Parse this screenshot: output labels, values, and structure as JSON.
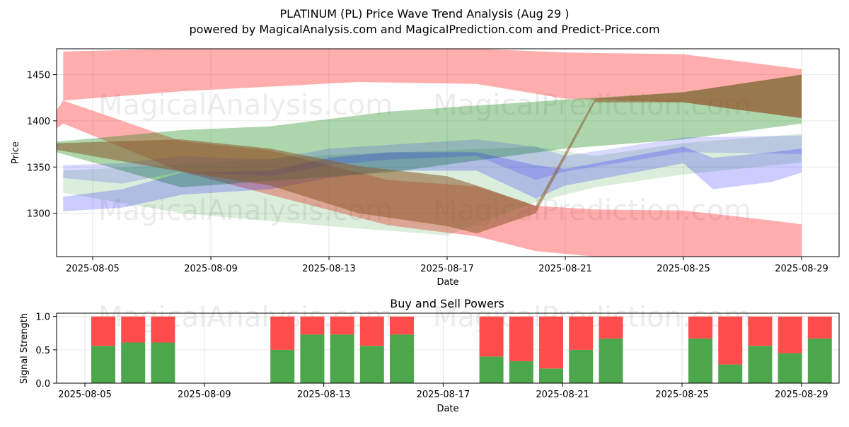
{
  "figure": {
    "title_line1": "PLATINUM (PL) Price Wave Trend Analysis (Aug 29 )",
    "title_line2": "powered by MagicalAnalysis.com and MagicalPrediction.com and Predict-Price.com",
    "watermarks": [
      "MagicalAnalysis.com",
      "MagicalPrediction.com"
    ]
  },
  "chart_data": [
    {
      "type": "area",
      "xlabel": "Date",
      "ylabel": "Price",
      "x_ticks": [
        "2025-08-05",
        "2025-08-09",
        "2025-08-13",
        "2025-08-17",
        "2025-08-21",
        "2025-08-25",
        "2025-08-29"
      ],
      "y_ticks": [
        1300,
        1350,
        1400,
        1450
      ],
      "ylim": [
        1253,
        1478
      ],
      "xlim": [
        "2025-08-03",
        "2025-08-30"
      ],
      "grid": true,
      "colors": {
        "red": "#ff0000",
        "green": "#008000",
        "blue": "#0000ff",
        "brown": "#8b5a2b"
      },
      "bands": [
        {
          "color": "red",
          "opacity": 0.32,
          "x": [
            "2025-08-04",
            "2025-08-08",
            "2025-08-14",
            "2025-08-18",
            "2025-08-21",
            "2025-08-25",
            "2025-08-29"
          ],
          "upper": [
            1475,
            1478,
            1478,
            1478,
            1474,
            1472,
            1456
          ],
          "lower": [
            1422,
            1432,
            1442,
            1440,
            1424,
            1420,
            1403
          ]
        },
        {
          "color": "red",
          "opacity": 0.32,
          "x": [
            "2025-08-03",
            "2025-08-04",
            "2025-08-08",
            "2025-08-11",
            "2025-08-15",
            "2025-08-18",
            "2025-08-20",
            "2025-08-22",
            "2025-08-25",
            "2025-08-28",
            "2025-08-29"
          ],
          "upper": [
            1375,
            1422,
            1378,
            1368,
            1336,
            1329,
            1308,
            1304,
            1303,
            1292,
            1288
          ],
          "lower": [
            1373,
            1397,
            1345,
            1320,
            1287,
            1275,
            1259,
            1253,
            1253,
            1253,
            1253
          ]
        },
        {
          "color": "green",
          "opacity": 0.32,
          "x": [
            "2025-08-03",
            "2025-08-08",
            "2025-08-11",
            "2025-08-15",
            "2025-08-21",
            "2025-08-25",
            "2025-08-29"
          ],
          "upper": [
            1375,
            1390,
            1394,
            1410,
            1423,
            1431,
            1450
          ],
          "lower": [
            1373,
            1328,
            1335,
            1344,
            1370,
            1380,
            1397
          ]
        },
        {
          "color": "green",
          "opacity": 0.14,
          "x": [
            "2025-08-04",
            "2025-08-08",
            "2025-08-13",
            "2025-08-17",
            "2025-08-20",
            "2025-08-22",
            "2025-08-25",
            "2025-08-29"
          ],
          "upper": [
            1346,
            1353,
            1363,
            1368,
            1372,
            1362,
            1376,
            1386
          ],
          "lower": [
            1322,
            1300,
            1286,
            1276,
            1312,
            1328,
            1342,
            1355
          ]
        },
        {
          "color": "blue",
          "opacity": 0.2,
          "x": [
            "2025-08-04",
            "2025-08-06",
            "2025-08-08",
            "2025-08-11",
            "2025-08-13",
            "2025-08-15",
            "2025-08-18",
            "2025-08-20",
            "2025-08-21",
            "2025-08-25",
            "2025-08-26",
            "2025-08-28",
            "2025-08-29"
          ],
          "upper": [
            1318,
            1326,
            1344,
            1346,
            1360,
            1366,
            1366,
            1352,
            1348,
            1372,
            1360,
            1366,
            1370
          ],
          "lower": [
            1302,
            1306,
            1320,
            1326,
            1338,
            1346,
            1346,
            1316,
            1330,
            1354,
            1326,
            1334,
            1344
          ]
        },
        {
          "color": "blue",
          "opacity": 0.15,
          "x": [
            "2025-08-04",
            "2025-08-06",
            "2025-08-08",
            "2025-08-11",
            "2025-08-13",
            "2025-08-15",
            "2025-08-18",
            "2025-08-20",
            "2025-08-21",
            "2025-08-25",
            "2025-08-29"
          ],
          "upper": [
            1352,
            1354,
            1362,
            1358,
            1370,
            1374,
            1380,
            1372,
            1362,
            1382,
            1384
          ],
          "lower": [
            1338,
            1332,
            1345,
            1340,
            1352,
            1358,
            1362,
            1336,
            1345,
            1366,
            1364
          ]
        }
      ],
      "bronze_band": {
        "x": [
          "2025-08-03",
          "2025-08-08",
          "2025-08-11",
          "2025-08-14",
          "2025-08-17",
          "2025-08-18",
          "2025-08-20",
          "2025-08-22",
          "2025-08-25",
          "2025-08-29"
        ],
        "upper": [
          1375,
          1380,
          1370,
          1351,
          1340,
          1330,
          1308,
          1424,
          1431,
          1450
        ],
        "lower": [
          1373,
          1345,
          1330,
          1300,
          1286,
          1278,
          1300,
          1420,
          1420,
          1403
        ]
      }
    },
    {
      "type": "bar",
      "title": "Buy and Sell Powers",
      "xlabel": "Date",
      "ylabel": "Signal Strength",
      "x_ticks": [
        "2025-08-05",
        "2025-08-09",
        "2025-08-13",
        "2025-08-17",
        "2025-08-21",
        "2025-08-25",
        "2025-08-29"
      ],
      "y_ticks": [
        0.0,
        0.5,
        1.0
      ],
      "ylim": [
        0,
        1.05
      ],
      "grid": true,
      "colors": {
        "buy": "#4ca64c",
        "sell": "#ff4c4c"
      },
      "categories": [
        "2025-08-05",
        "2025-08-06",
        "2025-08-07",
        "2025-08-11",
        "2025-08-12",
        "2025-08-13",
        "2025-08-14",
        "2025-08-15",
        "2025-08-18",
        "2025-08-19",
        "2025-08-20",
        "2025-08-21",
        "2025-08-22",
        "2025-08-25",
        "2025-08-26",
        "2025-08-27",
        "2025-08-28",
        "2025-08-29"
      ],
      "series": [
        {
          "values": [
            0.56,
            0.61,
            0.61,
            0.5,
            0.73,
            0.73,
            0.56,
            0.73,
            0.4,
            0.33,
            0.22,
            0.5,
            0.67,
            0.67,
            0.28,
            0.56,
            0.45,
            0.67
          ]
        },
        {
          "values": [
            0.44,
            0.39,
            0.39,
            0.5,
            0.27,
            0.27,
            0.44,
            0.27,
            0.6,
            0.67,
            0.78,
            0.5,
            0.33,
            0.33,
            0.72,
            0.44,
            0.55,
            0.33
          ]
        }
      ]
    }
  ]
}
